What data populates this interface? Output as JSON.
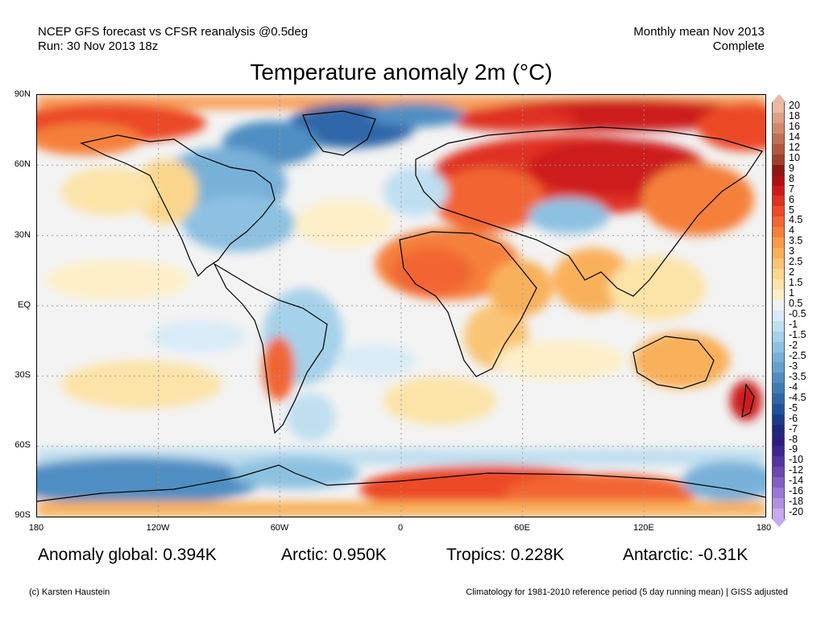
{
  "header": {
    "line1_left": "NCEP GFS forecast vs CFSR reanalysis @0.5deg",
    "line2_left": "Run: 30 Nov 2013 18z",
    "line1_right": "Monthly mean Nov 2013",
    "line2_right": "Complete"
  },
  "title": "Temperature anomaly 2m (°C)",
  "map": {
    "lat_labels": [
      "90N",
      "60N",
      "30N",
      "EQ",
      "30S",
      "60S",
      "90S"
    ],
    "lon_labels": [
      "180",
      "120W",
      "60W",
      "0",
      "60E",
      "120E",
      "180"
    ]
  },
  "colorbar": {
    "levels": [
      "20",
      "18",
      "16",
      "14",
      "12",
      "10",
      "9",
      "8",
      "7",
      "6",
      "5",
      "4.5",
      "4",
      "3.5",
      "3",
      "2.5",
      "2",
      "1.5",
      "1",
      "0.5",
      "-0.5",
      "-1",
      "-1.5",
      "-2",
      "-2.5",
      "-3",
      "-3.5",
      "-4",
      "-4.5",
      "-5",
      "-6",
      "-7",
      "-8",
      "-9",
      "-10",
      "-12",
      "-14",
      "-16",
      "-18",
      "-20"
    ],
    "colors": [
      "#e9b9a2",
      "#dca088",
      "#cf8a6e",
      "#c07055",
      "#b05840",
      "#a0402c",
      "#8c1818",
      "#b01010",
      "#cc1a1a",
      "#e03020",
      "#ec4a28",
      "#f26530",
      "#f5803a",
      "#f89a48",
      "#f9b05a",
      "#fac474",
      "#fbd68c",
      "#fce3a8",
      "#fdf0c8",
      "#f3f3f3",
      "#d8ebf6",
      "#bfdff0",
      "#a6d1ea",
      "#8dc1e1",
      "#78b1d8",
      "#64a0cd",
      "#508ec2",
      "#3f7bb5",
      "#2f66a8",
      "#22519a",
      "#1c3c8a",
      "#1d2a7a",
      "#2a1e80",
      "#40258e",
      "#54349e",
      "#6a48b0",
      "#8060c2",
      "#9878d2",
      "#b090e0",
      "#c8aaee"
    ]
  },
  "stats": {
    "global": "Anomaly global: 0.394K",
    "arctic": "Arctic: 0.950K",
    "tropics": "Tropics: 0.228K",
    "antarctic": "Antarctic: -0.31K"
  },
  "footer": {
    "left": "(c) Karsten Haustein",
    "right": "Climatology for 1981-2010 reference period (5 day running mean) | GISS adjusted"
  }
}
